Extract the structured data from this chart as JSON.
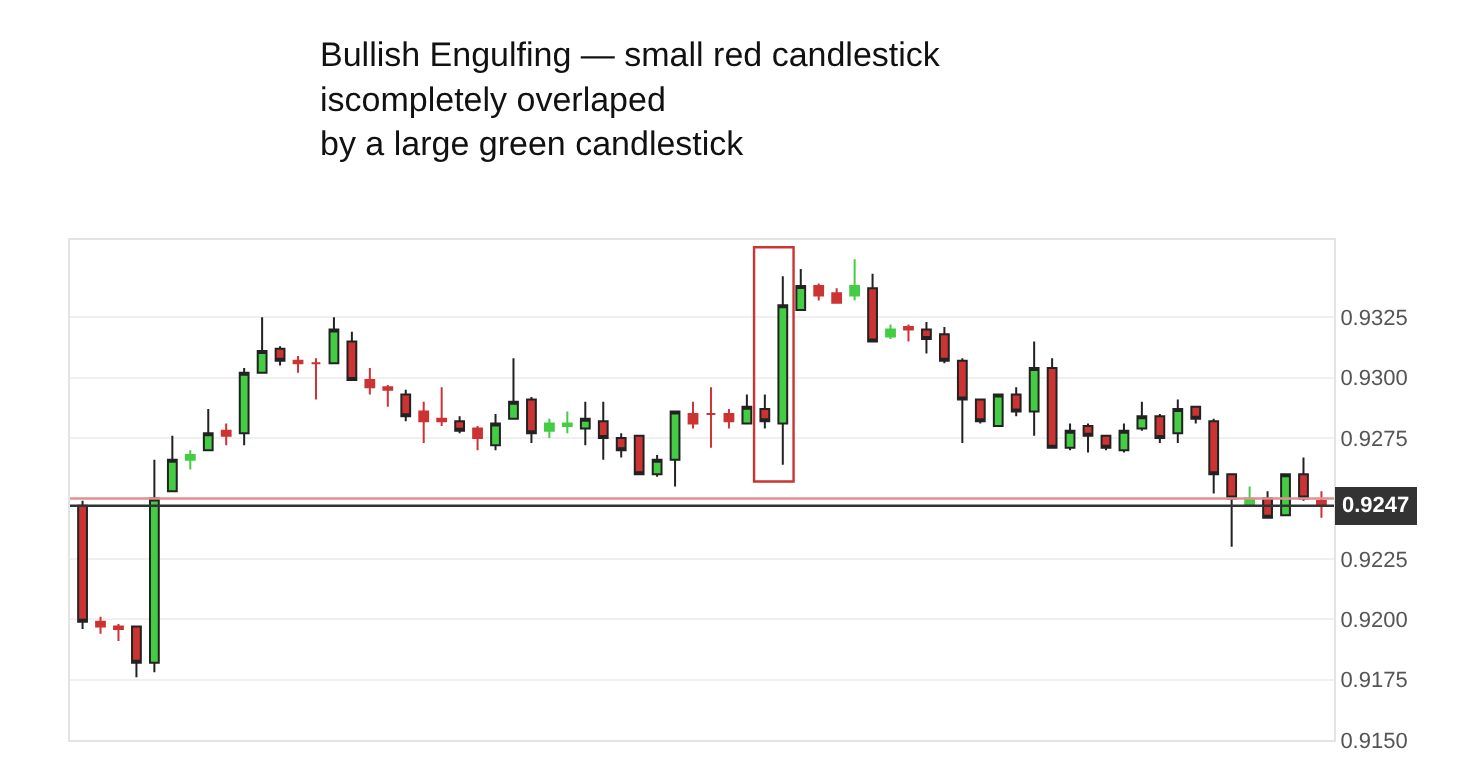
{
  "chart_data": {
    "type": "candlestick",
    "title": "Bullish Engulfing — small red candlestick\niscompletely overlaped\nby a large green candlestick",
    "categories": [
      null,
      null,
      null,
      null,
      null,
      null,
      null,
      null,
      null,
      null,
      null,
      null,
      null,
      null,
      null,
      null,
      null,
      null,
      null,
      null,
      null,
      null,
      null,
      null,
      null,
      null,
      null,
      null,
      null,
      null,
      null,
      null,
      null,
      null,
      null,
      null,
      null,
      null,
      null,
      null,
      null,
      null,
      null,
      null,
      null,
      null,
      null,
      null,
      null,
      null,
      null,
      null,
      null,
      null,
      null,
      null,
      null,
      null,
      null,
      null,
      null,
      null,
      null,
      null,
      null,
      null,
      null,
      null,
      null,
      null
    ],
    "ohlc": [
      [
        0.9247,
        0.9249,
        0.9196,
        0.9199
      ],
      [
        0.9199,
        0.9201,
        0.9194,
        0.9197
      ],
      [
        0.9197,
        0.9198,
        0.9191,
        0.9196
      ],
      [
        0.9197,
        0.9197,
        0.9176,
        0.9182
      ],
      [
        0.9182,
        0.9266,
        0.9178,
        0.925
      ],
      [
        0.9253,
        0.9276,
        0.9253,
        0.9266
      ],
      [
        0.9266,
        0.927,
        0.9262,
        0.9268
      ],
      [
        0.927,
        0.9287,
        0.927,
        0.9277
      ],
      [
        0.9278,
        0.9281,
        0.9272,
        0.9276
      ],
      [
        0.9277,
        0.9304,
        0.9272,
        0.9302
      ],
      [
        0.9302,
        0.9325,
        0.9302,
        0.9311
      ],
      [
        0.9312,
        0.9313,
        0.9305,
        0.9307
      ],
      [
        0.9307,
        0.9309,
        0.9302,
        0.9306
      ],
      [
        0.9306,
        0.9308,
        0.9291,
        0.9306
      ],
      [
        0.9306,
        0.9325,
        0.9306,
        0.932
      ],
      [
        0.9315,
        0.9319,
        0.9299,
        0.9299
      ],
      [
        0.9299,
        0.9304,
        0.9293,
        0.9296
      ],
      [
        0.9296,
        0.9297,
        0.9288,
        0.9295
      ],
      [
        0.9293,
        0.9295,
        0.9282,
        0.9284
      ],
      [
        0.9286,
        0.929,
        0.9273,
        0.9282
      ],
      [
        0.9283,
        0.9296,
        0.928,
        0.9282
      ],
      [
        0.9282,
        0.9284,
        0.9277,
        0.9278
      ],
      [
        0.9279,
        0.928,
        0.927,
        0.9275
      ],
      [
        0.9272,
        0.9285,
        0.927,
        0.9281
      ],
      [
        0.9283,
        0.9308,
        0.9283,
        0.929
      ],
      [
        0.9291,
        0.9292,
        0.9273,
        0.9277
      ],
      [
        0.9278,
        0.9283,
        0.9275,
        0.9281
      ],
      [
        0.928,
        0.9286,
        0.9277,
        0.9281
      ],
      [
        0.9279,
        0.929,
        0.9272,
        0.9283
      ],
      [
        0.9282,
        0.929,
        0.9266,
        0.9275
      ],
      [
        0.9275,
        0.9277,
        0.9267,
        0.927
      ],
      [
        0.9276,
        0.9276,
        0.926,
        0.926
      ],
      [
        0.926,
        0.9268,
        0.9259,
        0.9266
      ],
      [
        0.9266,
        0.9286,
        0.9255,
        0.9286
      ],
      [
        0.9285,
        0.929,
        0.9279,
        0.9281
      ],
      [
        0.9285,
        0.9296,
        0.9271,
        0.9285
      ],
      [
        0.9285,
        0.9287,
        0.9279,
        0.9282
      ],
      [
        0.9281,
        0.9293,
        0.9281,
        0.9288
      ],
      [
        0.9287,
        0.9293,
        0.9279,
        0.9282
      ],
      [
        0.9281,
        0.9342,
        0.9264,
        0.933
      ],
      [
        0.9328,
        0.9345,
        0.9328,
        0.9338
      ],
      [
        0.9338,
        0.9339,
        0.9332,
        0.9334
      ],
      [
        0.9335,
        0.9337,
        0.9331,
        0.9331
      ],
      [
        0.9334,
        0.9349,
        0.9332,
        0.9338
      ],
      [
        0.9337,
        0.9343,
        0.9315,
        0.9315
      ],
      [
        0.9317,
        0.9322,
        0.9316,
        0.932
      ],
      [
        0.9321,
        0.9322,
        0.9315,
        0.932
      ],
      [
        0.932,
        0.9323,
        0.931,
        0.9316
      ],
      [
        0.9318,
        0.9321,
        0.9306,
        0.9307
      ],
      [
        0.9307,
        0.9308,
        0.9273,
        0.9291
      ],
      [
        0.9291,
        0.9291,
        0.9281,
        0.9282
      ],
      [
        0.928,
        0.9293,
        0.928,
        0.9293
      ],
      [
        0.9293,
        0.9296,
        0.9284,
        0.9286
      ],
      [
        0.9286,
        0.9315,
        0.9276,
        0.9304
      ],
      [
        0.9304,
        0.9308,
        0.9271,
        0.9271
      ],
      [
        0.9271,
        0.9281,
        0.927,
        0.9278
      ],
      [
        0.928,
        0.9281,
        0.9269,
        0.9276
      ],
      [
        0.9276,
        0.9276,
        0.927,
        0.9271
      ],
      [
        0.927,
        0.9281,
        0.9269,
        0.9278
      ],
      [
        0.9279,
        0.929,
        0.9278,
        0.9284
      ],
      [
        0.9284,
        0.9285,
        0.9273,
        0.9275
      ],
      [
        0.9277,
        0.9291,
        0.9273,
        0.9287
      ],
      [
        0.9288,
        0.9288,
        0.9281,
        0.9283
      ],
      [
        0.9282,
        0.9283,
        0.9252,
        0.926
      ],
      [
        0.926,
        0.926,
        0.923,
        0.925
      ],
      [
        0.9247,
        0.9255,
        0.9247,
        0.925
      ],
      [
        0.925,
        0.9253,
        0.9242,
        0.9242
      ],
      [
        0.9243,
        0.926,
        0.9243,
        0.926
      ],
      [
        0.926,
        0.9267,
        0.9249,
        0.925
      ],
      [
        0.9249,
        0.9253,
        0.9242,
        0.9247
      ]
    ],
    "colors": [
      "#cc3333",
      "#cc3333",
      "#cc3333",
      "#cc3333",
      "#44cc44",
      "#44cc44",
      "#44cc44",
      "#44cc44",
      "#cc3333",
      "#44cc44",
      "#44cc44",
      "#cc3333",
      "#cc3333",
      "#cc3333",
      "#44cc44",
      "#cc3333",
      "#cc3333",
      "#cc3333",
      "#cc3333",
      "#cc3333",
      "#cc3333",
      "#cc3333",
      "#cc3333",
      "#44cc44",
      "#44cc44",
      "#cc3333",
      "#44cc44",
      "#44cc44",
      "#44cc44",
      "#cc3333",
      "#cc3333",
      "#cc3333",
      "#44cc44",
      "#44cc44",
      "#cc3333",
      "#cc3333",
      "#cc3333",
      "#44cc44",
      "#cc3333",
      "#44cc44",
      "#44cc44",
      "#cc3333",
      "#cc3333",
      "#44cc44",
      "#cc3333",
      "#44cc44",
      "#cc3333",
      "#cc3333",
      "#cc3333",
      "#cc3333",
      "#cc3333",
      "#44cc44",
      "#cc3333",
      "#44cc44",
      "#cc3333",
      "#44cc44",
      "#cc3333",
      "#cc3333",
      "#44cc44",
      "#44cc44",
      "#cc3333",
      "#44cc44",
      "#cc3333",
      "#cc3333",
      "#cc3333",
      "#44cc44",
      "#cc3333",
      "#44cc44",
      "#cc3333",
      "#cc3333"
    ],
    "ylim": [
      0.915,
      0.9357
    ],
    "yticks": [
      {
        "value": 0.915,
        "label": "0.9150"
      },
      0.9175,
      {
        "value": 0.92,
        "label": "0.9200"
      },
      0.9225,
      0.9275,
      {
        "value": 0.93,
        "label": "0.9300"
      },
      0.9325
    ],
    "ref_lines": [
      {
        "axis": "y",
        "value": 0.925,
        "color": "#e09090"
      },
      {
        "axis": "y",
        "value": 0.9247,
        "label": "0.9247",
        "color": "#333333"
      }
    ],
    "grid": "y",
    "tick_labels": "y"
  }
}
